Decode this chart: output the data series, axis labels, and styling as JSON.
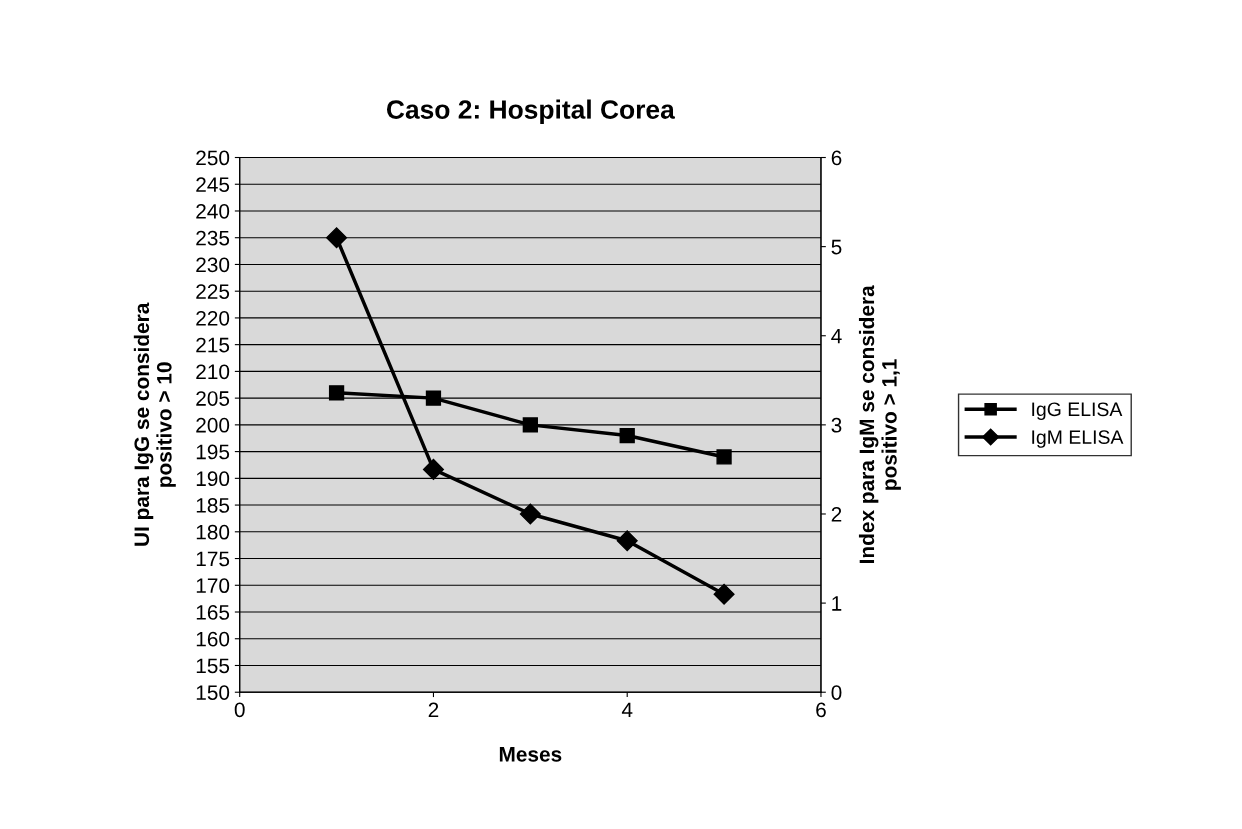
{
  "chart_data": {
    "type": "line",
    "title": "Caso 2: Hospital Corea",
    "xlabel": "Meses",
    "ylabel": "UI para IgG se considera\npositivo > 10",
    "y2label": "Index para IgM se considera\npositivo > 1,1",
    "x": [
      1,
      2,
      3,
      4,
      5
    ],
    "series": [
      {
        "name": "IgG ELISA",
        "color": "#000000",
        "marker": "square",
        "values": [
          206,
          205,
          200,
          198,
          194
        ]
      },
      {
        "name": "IgM ELISA",
        "color": "#000000",
        "marker": "diamond",
        "axis": "y2",
        "values": [
          5.1,
          2.5,
          2.0,
          1.7,
          1.1
        ]
      }
    ],
    "xlim": [
      0,
      6
    ],
    "xticks": [
      0,
      2,
      4,
      6
    ],
    "ylim": [
      150,
      250
    ],
    "yticks": [
      150,
      155,
      160,
      165,
      170,
      175,
      180,
      185,
      190,
      195,
      200,
      205,
      210,
      215,
      220,
      225,
      230,
      235,
      240,
      245,
      250
    ],
    "y2lim": [
      0,
      6
    ],
    "y2ticks": [
      0,
      1,
      2,
      3,
      4,
      5,
      6
    ],
    "grid": "y",
    "legend": "right",
    "line_style": "solid"
  }
}
